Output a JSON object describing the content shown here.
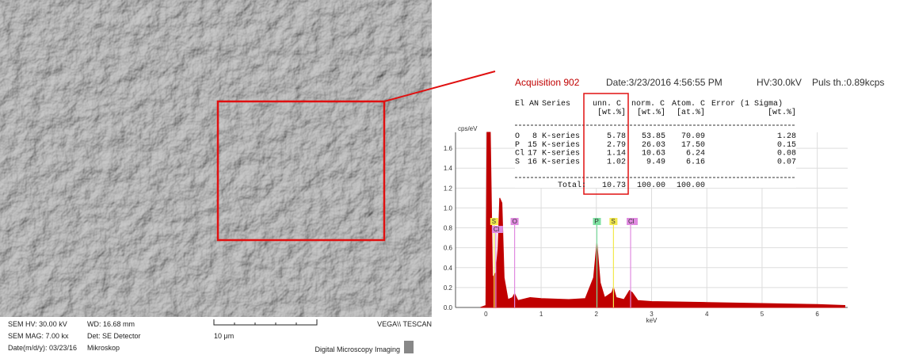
{
  "sem": {
    "hv": "SEM HV: 30.00 kV",
    "wd": "WD: 16.68 mm",
    "mag": "SEM MAG: 7.00 kx",
    "det": "Det: SE Detector",
    "date": "Date(m/d/y): 03/23/16",
    "lab": "Mikroskop",
    "scale": "10 μm",
    "brand": "VEGA\\\\ TESCAN",
    "footer": "Digital Microscopy Imaging"
  },
  "acquisition": {
    "title": "Acquisition 902",
    "date": "Date:3/23/2016 4:56:55 PM",
    "hv": "HV:30.0kV",
    "puls": "Puls th.:0.89kcps"
  },
  "table": {
    "header": [
      "El",
      "AN",
      "Series",
      "unn. C",
      "norm. C",
      "Atom. C",
      "Error (1 Sigma)"
    ],
    "units": [
      "[wt.%]",
      "[wt.%]",
      "[at.%]",
      "[wt.%]"
    ],
    "rows": [
      [
        "O",
        "8",
        "K-series",
        "5.78",
        "53.85",
        "70.09",
        "1.28"
      ],
      [
        "P",
        "15",
        "K-series",
        "2.79",
        "26.03",
        "17.50",
        "0.15"
      ],
      [
        "Cl",
        "17",
        "K-series",
        "1.14",
        "10.63",
        "6.24",
        "0.08"
      ],
      [
        "S",
        "16",
        "K-series",
        "1.02",
        "9.49",
        "6.16",
        "0.07"
      ]
    ],
    "total": [
      "Total:",
      "10.73",
      "100.00",
      "100.00"
    ]
  },
  "chart_data": {
    "type": "area",
    "y_label": "cps/eV",
    "x_label": "keV",
    "x": [
      -0.1,
      0,
      0.02,
      0.08,
      0.12,
      0.18,
      0.22,
      0.25,
      0.29,
      0.33,
      0.4,
      0.48,
      0.52,
      0.58,
      0.8,
      1.0,
      1.5,
      1.8,
      1.95,
      2.01,
      2.07,
      2.15,
      2.28,
      2.31,
      2.36,
      2.5,
      2.6,
      2.65,
      2.75,
      3.0,
      4,
      5,
      6,
      6.5
    ],
    "values": [
      0,
      0.02,
      1.76,
      1.76,
      0.3,
      0.35,
      0.6,
      1.1,
      1.05,
      0.3,
      0.08,
      0.1,
      0.14,
      0.07,
      0.1,
      0.09,
      0.08,
      0.09,
      0.3,
      0.65,
      0.25,
      0.1,
      0.15,
      0.2,
      0.1,
      0.08,
      0.17,
      0.15,
      0.07,
      0.06,
      0.05,
      0.04,
      0.03,
      0.02
    ],
    "color": "#c00000",
    "xlim": [
      -0.55,
      6.55
    ],
    "ylim": [
      0,
      1.76
    ],
    "xticks": [
      0,
      1,
      2,
      3,
      4,
      5,
      6
    ],
    "yticks": [
      {
        "value": 0,
        "label": "0.0"
      },
      {
        "value": 0.2,
        "label": "0.2"
      },
      {
        "value": 0.4,
        "label": "0.4"
      },
      {
        "value": 0.6,
        "label": "0.6"
      },
      {
        "value": 0.8,
        "label": "0.8"
      },
      {
        "value": 1.0,
        "label": "1.0"
      },
      {
        "value": 1.2,
        "label": "1.2"
      },
      {
        "value": 1.4,
        "label": "1.4"
      },
      {
        "value": 1.6,
        "label": "1.6"
      }
    ],
    "grid": true,
    "peaks": [
      {
        "label": "S",
        "x": 0.15,
        "color": "#f2e94e"
      },
      {
        "label": "Cl",
        "x": 0.18,
        "color": "#e08ae0"
      },
      {
        "label": "O",
        "x": 0.52,
        "color": "#e08ae0"
      },
      {
        "label": "P",
        "x": 2.01,
        "color": "#7de0a0"
      },
      {
        "label": "S",
        "x": 2.31,
        "color": "#f2e94e"
      },
      {
        "label": "Cl",
        "x": 2.62,
        "color": "#e08ae0"
      }
    ]
  }
}
